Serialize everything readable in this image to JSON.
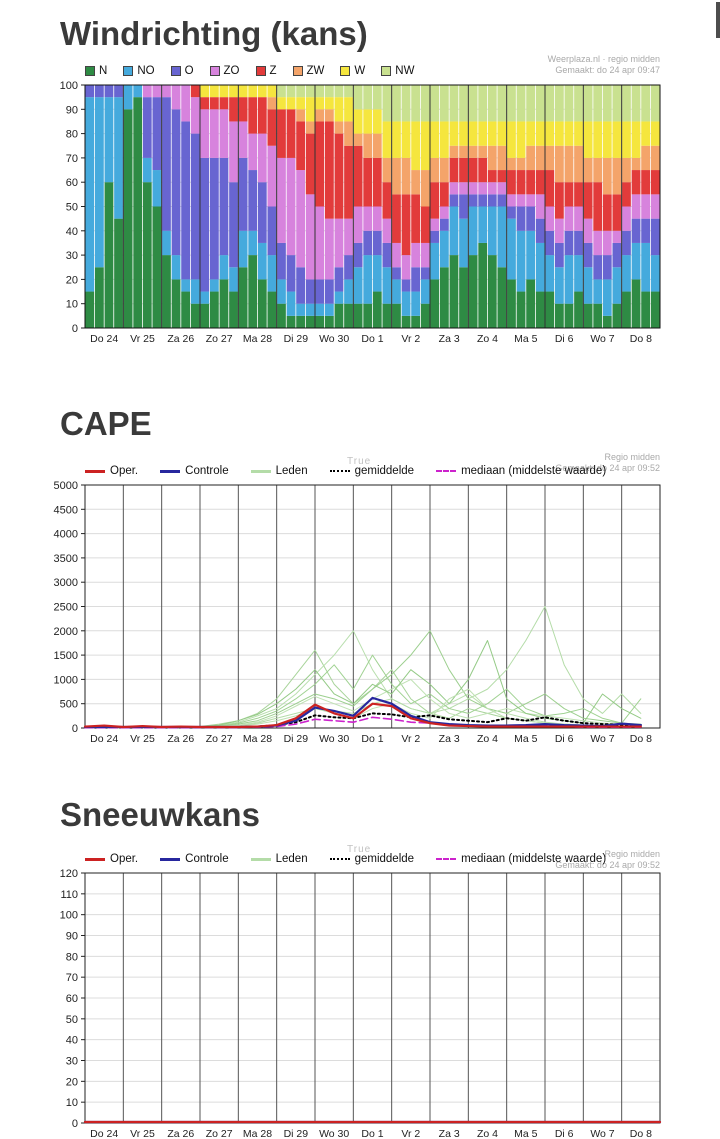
{
  "chart_data": [
    {
      "id": "wind",
      "type": "bar",
      "stacked": true,
      "title": "Windrichting (kans)",
      "source": "Weerplaza.nl · regio midden",
      "generated": "Gemaakt: do 24 apr 09:47",
      "ylabel": "%",
      "ylim": [
        0,
        100
      ],
      "ytick_step": 10,
      "grid": true,
      "legend_position": "top-left",
      "categories": [
        "Do 24",
        "Vr 25",
        "Za 26",
        "Zo 27",
        "Ma 28",
        "Di 29",
        "Wo 30",
        "Do 1",
        "Vr 2",
        "Za 3",
        "Zo 4",
        "Ma 5",
        "Di 6",
        "Wo 7",
        "Do 8"
      ],
      "bars_per_day": 4,
      "series_order": [
        "N",
        "NO",
        "O",
        "ZO",
        "Z",
        "ZW",
        "W",
        "NW"
      ],
      "colors": {
        "N": "#2e8b44",
        "NO": "#45aadd",
        "O": "#6865d1",
        "ZO": "#d783dd",
        "Z": "#e23b3b",
        "ZW": "#f4a46a",
        "W": "#f5e63e",
        "NW": "#c9e190"
      },
      "bars": [
        [
          15,
          80,
          5,
          0,
          0,
          0,
          0,
          0
        ],
        [
          25,
          70,
          5,
          0,
          0,
          0,
          0,
          0
        ],
        [
          60,
          35,
          5,
          0,
          0,
          0,
          0,
          0
        ],
        [
          45,
          50,
          5,
          0,
          0,
          0,
          0,
          0
        ],
        [
          90,
          10,
          0,
          0,
          0,
          0,
          0,
          0
        ],
        [
          95,
          5,
          0,
          0,
          0,
          0,
          0,
          0
        ],
        [
          60,
          10,
          25,
          5,
          0,
          0,
          0,
          0
        ],
        [
          50,
          15,
          30,
          5,
          0,
          0,
          0,
          0
        ],
        [
          30,
          10,
          55,
          5,
          0,
          0,
          0,
          0
        ],
        [
          20,
          10,
          60,
          10,
          0,
          0,
          0,
          0
        ],
        [
          15,
          5,
          65,
          15,
          0,
          0,
          0,
          0
        ],
        [
          10,
          10,
          60,
          15,
          5,
          0,
          0,
          0
        ],
        [
          10,
          5,
          55,
          20,
          5,
          0,
          5,
          0
        ],
        [
          15,
          5,
          50,
          20,
          5,
          0,
          5,
          0
        ],
        [
          20,
          10,
          40,
          20,
          5,
          0,
          5,
          0
        ],
        [
          15,
          10,
          35,
          25,
          10,
          0,
          5,
          0
        ],
        [
          25,
          15,
          30,
          15,
          10,
          0,
          5,
          0
        ],
        [
          30,
          10,
          25,
          15,
          15,
          0,
          5,
          0
        ],
        [
          20,
          15,
          25,
          20,
          15,
          0,
          5,
          0
        ],
        [
          15,
          15,
          20,
          25,
          15,
          5,
          5,
          0
        ],
        [
          10,
          10,
          15,
          35,
          20,
          0,
          5,
          5
        ],
        [
          5,
          10,
          15,
          40,
          20,
          0,
          5,
          5
        ],
        [
          5,
          5,
          15,
          40,
          20,
          5,
          5,
          5
        ],
        [
          5,
          5,
          10,
          35,
          25,
          5,
          10,
          5
        ],
        [
          5,
          5,
          10,
          30,
          35,
          5,
          5,
          5
        ],
        [
          5,
          5,
          10,
          25,
          40,
          5,
          5,
          5
        ],
        [
          10,
          5,
          10,
          20,
          35,
          5,
          10,
          5
        ],
        [
          10,
          10,
          10,
          15,
          30,
          10,
          10,
          5
        ],
        [
          10,
          15,
          10,
          15,
          25,
          5,
          10,
          10
        ],
        [
          10,
          20,
          10,
          10,
          20,
          10,
          10,
          10
        ],
        [
          15,
          15,
          10,
          10,
          20,
          10,
          10,
          10
        ],
        [
          10,
          15,
          10,
          10,
          15,
          10,
          15,
          15
        ],
        [
          10,
          10,
          5,
          10,
          20,
          15,
          15,
          15
        ],
        [
          5,
          10,
          5,
          10,
          25,
          15,
          15,
          15
        ],
        [
          5,
          10,
          10,
          10,
          20,
          10,
          20,
          15
        ],
        [
          10,
          10,
          5,
          10,
          15,
          15,
          20,
          15
        ],
        [
          20,
          15,
          5,
          5,
          15,
          10,
          15,
          15
        ],
        [
          25,
          15,
          5,
          5,
          10,
          10,
          15,
          15
        ],
        [
          30,
          20,
          5,
          5,
          10,
          5,
          10,
          15
        ],
        [
          25,
          20,
          10,
          5,
          10,
          5,
          10,
          15
        ],
        [
          30,
          20,
          5,
          5,
          10,
          5,
          10,
          15
        ],
        [
          35,
          15,
          5,
          5,
          10,
          5,
          10,
          15
        ],
        [
          30,
          20,
          5,
          5,
          5,
          10,
          10,
          15
        ],
        [
          25,
          25,
          5,
          5,
          5,
          10,
          10,
          15
        ],
        [
          20,
          25,
          5,
          5,
          10,
          5,
          15,
          15
        ],
        [
          15,
          25,
          10,
          5,
          10,
          5,
          15,
          15
        ],
        [
          20,
          20,
          10,
          5,
          10,
          10,
          10,
          15
        ],
        [
          15,
          20,
          10,
          10,
          10,
          10,
          10,
          15
        ],
        [
          15,
          15,
          10,
          10,
          15,
          10,
          10,
          15
        ],
        [
          10,
          15,
          10,
          10,
          15,
          15,
          10,
          15
        ],
        [
          10,
          20,
          10,
          10,
          10,
          15,
          10,
          15
        ],
        [
          15,
          15,
          10,
          10,
          10,
          15,
          10,
          15
        ],
        [
          10,
          15,
          10,
          10,
          15,
          10,
          15,
          15
        ],
        [
          10,
          10,
          10,
          10,
          20,
          10,
          15,
          15
        ],
        [
          5,
          15,
          10,
          10,
          15,
          15,
          15,
          15
        ],
        [
          10,
          15,
          10,
          5,
          15,
          15,
          15,
          15
        ],
        [
          15,
          15,
          10,
          10,
          10,
          10,
          15,
          15
        ],
        [
          20,
          15,
          10,
          10,
          10,
          5,
          15,
          15
        ],
        [
          15,
          20,
          10,
          10,
          10,
          10,
          10,
          15
        ],
        [
          15,
          15,
          15,
          10,
          10,
          10,
          10,
          15
        ]
      ]
    },
    {
      "id": "cape",
      "type": "line",
      "title": "CAPE",
      "source": "Regio midden",
      "generated": "Gemaakt: do 24 apr 09:52",
      "watermark": "True",
      "ylim": [
        0,
        5000
      ],
      "ytick_step": 500,
      "grid": true,
      "legend_position": "top-left",
      "categories": [
        "Do 24",
        "Vr 25",
        "Za 26",
        "Zo 27",
        "Ma 28",
        "Di 29",
        "Wo 30",
        "Do 1",
        "Vr 2",
        "Za 3",
        "Zo 4",
        "Ma 5",
        "Di 6",
        "Wo 7",
        "Do 8"
      ],
      "points_per_day": 2,
      "legend": [
        {
          "label": "Oper.",
          "color": "#cc2222",
          "dash": "solid"
        },
        {
          "label": "Controle",
          "color": "#27279e",
          "dash": "solid"
        },
        {
          "label": "Leden",
          "color": "#b4dca8",
          "dash": "solid"
        },
        {
          "label": "gemiddelde",
          "color": "#000000",
          "dash": "dotted"
        },
        {
          "label": "mediaan (middelste waarde)",
          "color": "#cc22cc",
          "dash": "dashed"
        }
      ],
      "series": [
        {
          "name": "Leden",
          "color": "#a8d49a",
          "width": 1,
          "values": [
            10,
            10,
            10,
            10,
            10,
            20,
            30,
            80,
            150,
            300,
            600,
            1100,
            1600,
            900,
            500,
            800,
            1200,
            600,
            300,
            200,
            400,
            300,
            200,
            150,
            100,
            80,
            60,
            50,
            40,
            30
          ]
        },
        {
          "name": "Leden",
          "color": "#b9dfae",
          "width": 1,
          "values": [
            10,
            10,
            10,
            10,
            10,
            10,
            20,
            50,
            120,
            250,
            400,
            700,
            1100,
            1500,
            2000,
            1200,
            600,
            400,
            300,
            500,
            700,
            400,
            300,
            200,
            120,
            80,
            60,
            50,
            40,
            30
          ]
        },
        {
          "name": "Leden",
          "color": "#9ccf8e",
          "width": 1,
          "values": [
            5,
            5,
            5,
            5,
            5,
            10,
            10,
            30,
            80,
            150,
            300,
            500,
            700,
            600,
            450,
            800,
            1100,
            1500,
            2000,
            1200,
            600,
            400,
            300,
            500,
            700,
            400,
            200,
            150,
            100,
            80
          ]
        },
        {
          "name": "Leden",
          "color": "#b4dca8",
          "width": 1,
          "values": [
            5,
            5,
            5,
            5,
            5,
            5,
            10,
            20,
            50,
            100,
            200,
            300,
            400,
            350,
            300,
            500,
            600,
            400,
            300,
            400,
            600,
            800,
            1200,
            1800,
            2500,
            1300,
            600,
            300,
            700,
            300
          ]
        },
        {
          "name": "Leden",
          "color": "#a0d292",
          "width": 1,
          "values": [
            10,
            10,
            10,
            10,
            10,
            10,
            15,
            40,
            100,
            200,
            350,
            600,
            900,
            1300,
            800,
            1500,
            900,
            500,
            700,
            400,
            300,
            500,
            800,
            400,
            250,
            300,
            400,
            200,
            100,
            600
          ]
        },
        {
          "name": "Leden",
          "color": "#c0e2b4",
          "width": 1,
          "values": [
            5,
            5,
            5,
            5,
            5,
            10,
            15,
            30,
            60,
            120,
            250,
            450,
            650,
            500,
            350,
            600,
            800,
            1000,
            600,
            300,
            200,
            300,
            400,
            300,
            250,
            200,
            150,
            100,
            80,
            60
          ]
        },
        {
          "name": "Leden",
          "color": "#94ca86",
          "width": 1,
          "values": [
            10,
            10,
            10,
            10,
            10,
            15,
            25,
            60,
            150,
            280,
            500,
            800,
            1200,
            700,
            500,
            900,
            700,
            1200,
            900,
            500,
            1000,
            1800,
            600,
            300,
            200,
            150,
            100,
            700,
            400,
            200
          ]
        },
        {
          "name": "Leden",
          "color": "#bfe0b2",
          "width": 1,
          "values": [
            5,
            5,
            5,
            5,
            5,
            10,
            10,
            20,
            40,
            80,
            150,
            250,
            400,
            300,
            200,
            400,
            500,
            300,
            200,
            600,
            800,
            400,
            200,
            150,
            100,
            80,
            60,
            40,
            30,
            20
          ]
        },
        {
          "name": "gemiddelde",
          "color": "#000000",
          "dash": "dotted",
          "width": 2,
          "values": [
            10,
            10,
            10,
            10,
            10,
            10,
            15,
            15,
            20,
            30,
            60,
            120,
            260,
            220,
            200,
            300,
            280,
            220,
            260,
            180,
            150,
            120,
            200,
            150,
            220,
            150,
            100,
            80,
            70,
            60
          ]
        },
        {
          "name": "mediaan (middelste waarde)",
          "color": "#cc22cc",
          "dash": "dashed",
          "width": 1.6,
          "values": [
            5,
            5,
            5,
            5,
            5,
            5,
            10,
            10,
            10,
            20,
            30,
            80,
            180,
            150,
            120,
            220,
            180,
            120,
            100,
            60,
            40,
            30,
            40,
            30,
            50,
            30,
            20,
            20,
            20,
            20
          ]
        },
        {
          "name": "Controle",
          "color": "#27279e",
          "width": 2.2,
          "values": [
            20,
            20,
            20,
            20,
            20,
            20,
            20,
            20,
            20,
            30,
            50,
            150,
            420,
            350,
            250,
            620,
            500,
            250,
            120,
            80,
            60,
            50,
            50,
            60,
            80,
            60,
            50,
            40,
            90,
            60
          ]
        },
        {
          "name": "Oper.",
          "color": "#cc2222",
          "width": 2.2,
          "values": [
            30,
            50,
            20,
            40,
            20,
            30,
            20,
            20,
            20,
            30,
            60,
            200,
            480,
            300,
            200,
            500,
            450,
            200,
            100,
            50,
            40,
            30,
            30,
            30,
            30,
            30,
            30,
            30,
            30,
            30
          ]
        }
      ]
    },
    {
      "id": "sneeuw",
      "type": "line",
      "title": "Sneeuwkans",
      "source": "Regio midden",
      "generated": "Gemaakt: do 24 apr 09:52",
      "watermark": "True",
      "ylim": [
        0,
        120
      ],
      "ytick_step": 10,
      "grid": true,
      "legend_position": "top-left",
      "categories": [
        "Do 24",
        "Vr 25",
        "Za 26",
        "Zo 27",
        "Ma 28",
        "Di 29",
        "Wo 30",
        "Do 1",
        "Vr 2",
        "Za 3",
        "Zo 4",
        "Ma 5",
        "Di 6",
        "Wo 7",
        "Do 8"
      ],
      "points_per_day": 2,
      "legend": [
        {
          "label": "Oper.",
          "color": "#cc2222",
          "dash": "solid"
        },
        {
          "label": "Controle",
          "color": "#27279e",
          "dash": "solid"
        },
        {
          "label": "Leden",
          "color": "#b4dca8",
          "dash": "solid"
        },
        {
          "label": "gemiddelde",
          "color": "#000000",
          "dash": "dotted"
        },
        {
          "label": "mediaan (middelste waarde)",
          "color": "#cc22cc",
          "dash": "dashed"
        }
      ],
      "series": [
        {
          "name": "Leden",
          "color": "#b4dca8",
          "width": 1,
          "flat": 0
        },
        {
          "name": "gemiddelde",
          "color": "#000000",
          "dash": "dotted",
          "width": 2,
          "flat": 0
        },
        {
          "name": "mediaan (middelste waarde)",
          "color": "#cc22cc",
          "dash": "dashed",
          "width": 1.6,
          "flat": 0
        },
        {
          "name": "Controle",
          "color": "#27279e",
          "width": 2.2,
          "flat": 0
        },
        {
          "name": "Oper.",
          "color": "#cc2222",
          "width": 2.2,
          "flat": 0
        }
      ]
    }
  ]
}
